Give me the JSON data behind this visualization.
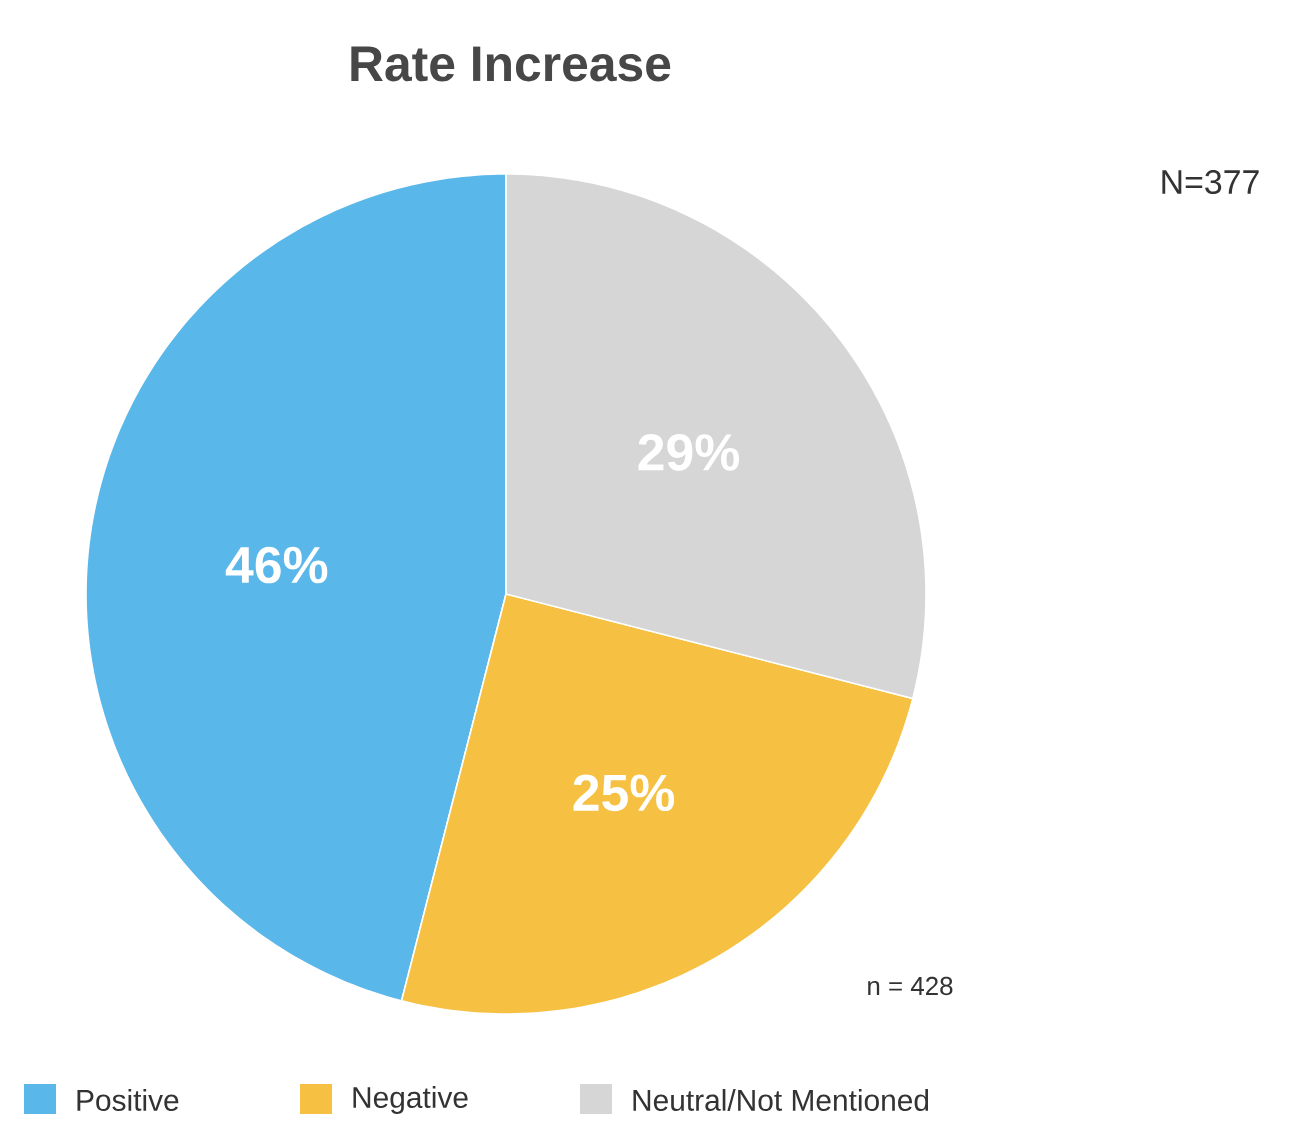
{
  "chart_data": {
    "type": "pie",
    "title": "Rate Increase",
    "categories": [
      "Positive",
      "Negative",
      "Neutral/Not Mentioned"
    ],
    "values": [
      46,
      25,
      29
    ],
    "colors": [
      "#5ab7ea",
      "#f6c143",
      "#d6d6d6"
    ],
    "value_labels": [
      "46%",
      "25%",
      "29%"
    ],
    "legend": "bottom",
    "annotations": [
      "N=377",
      "n = 428"
    ]
  }
}
